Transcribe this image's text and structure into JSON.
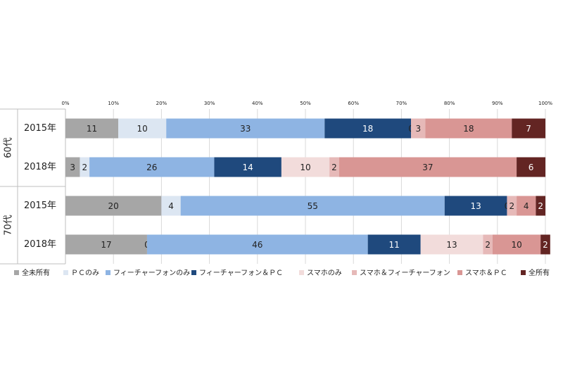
{
  "chart_data": {
    "type": "stacked-bar-100",
    "groups": [
      "60代",
      "70代"
    ],
    "categories": [
      "2015年",
      "2018年",
      "2015年",
      "2018年"
    ],
    "series": [
      {
        "name": "全未所有",
        "color": "#a6a6a6",
        "values": [
          11,
          3,
          20,
          17
        ]
      },
      {
        "name": "ＰＣのみ",
        "color": "#dce6f2",
        "values": [
          10,
          2,
          4,
          0
        ]
      },
      {
        "name": "フィーチャーフォンのみ",
        "color": "#8eb4e3",
        "values": [
          33,
          26,
          55,
          46
        ]
      },
      {
        "name": "フィーチャーフォン＆ＰＣ",
        "color": "#1f497d",
        "values": [
          18,
          14,
          13,
          11
        ]
      },
      {
        "name": "スマホのみ",
        "color": "#f2dcdb",
        "values": [
          0,
          10,
          0,
          13
        ]
      },
      {
        "name": "スマホ＆フィーチャーフォン",
        "color": "#e6b9b8",
        "values": [
          3,
          2,
          2,
          2
        ]
      },
      {
        "name": "スマホ＆ＰＣ",
        "color": "#d99694",
        "values": [
          18,
          37,
          4,
          10
        ]
      },
      {
        "name": "全所有",
        "color": "#632523",
        "values": [
          7,
          6,
          2,
          2
        ]
      }
    ],
    "xlim": [
      0,
      100
    ],
    "xticks": [
      {
        "value": 0,
        "label": "0%"
      },
      {
        "value": 10,
        "label": "10%"
      },
      {
        "value": 20,
        "label": "20%"
      },
      {
        "value": 30,
        "label": "30%"
      },
      {
        "value": 40,
        "label": "40%"
      },
      {
        "value": 50,
        "label": "50%"
      },
      {
        "value": 60,
        "label": "60%"
      },
      {
        "value": 70,
        "label": "70%"
      },
      {
        "value": 80,
        "label": "80%"
      },
      {
        "value": 90,
        "label": "90%"
      },
      {
        "value": 100,
        "label": "100%"
      }
    ],
    "grid": true
  }
}
